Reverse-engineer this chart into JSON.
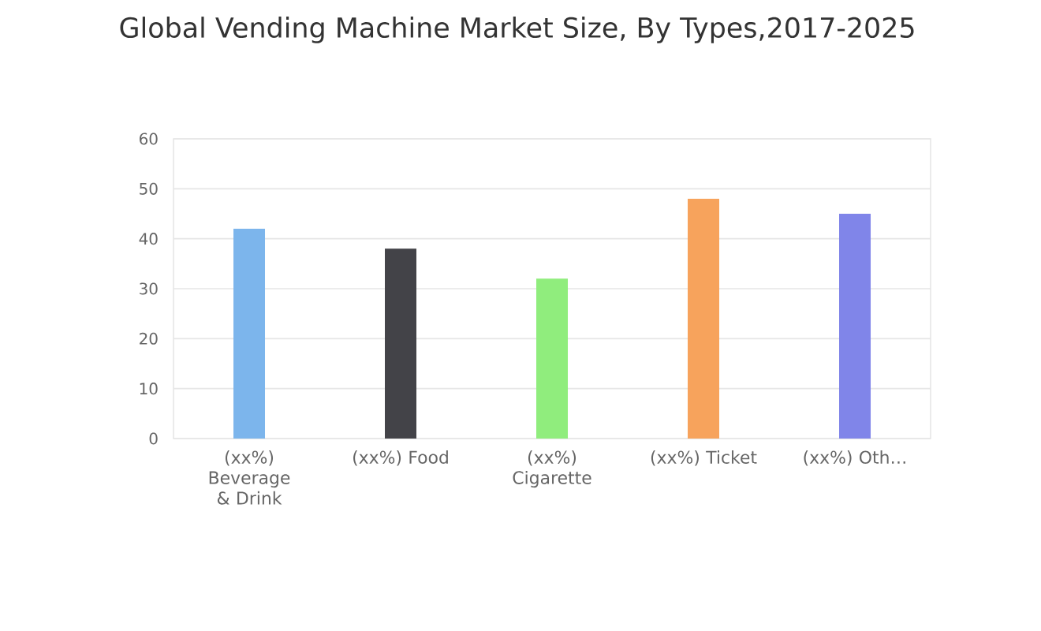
{
  "chart_data": {
    "type": "bar",
    "title": "Global Vending Machine Market Size, By Types,2017-2025",
    "categories": [
      "(xx%) Beverage & Drink",
      "(xx%) Food",
      "(xx%) Cigarette",
      "(xx%) Ticket",
      "(xx%) Oth…"
    ],
    "values": [
      42,
      38,
      32,
      48,
      45
    ],
    "colors": [
      "#7cb5ec",
      "#434348",
      "#90ed7d",
      "#f7a35c",
      "#8085e9"
    ],
    "ylim": [
      0,
      60
    ],
    "yticks": [
      0,
      10,
      20,
      30,
      40,
      50,
      60
    ],
    "grid": "y"
  }
}
